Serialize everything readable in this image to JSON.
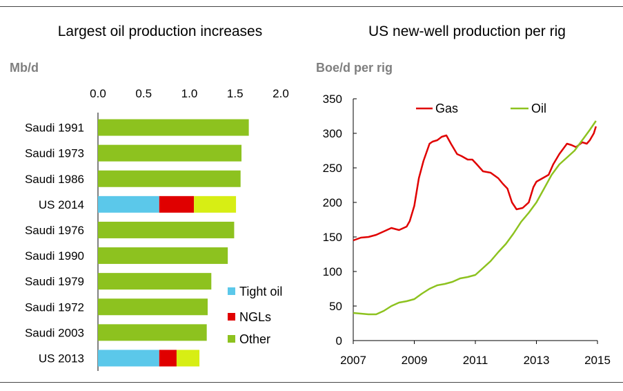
{
  "chart_data": [
    {
      "type": "bar",
      "orientation": "horizontal",
      "stacked": true,
      "title": "Largest oil production increases",
      "ylabel": "Mb/d",
      "xlim": [
        0,
        2.0
      ],
      "xticks": [
        "0.0",
        "0.5",
        "1.0",
        "1.5",
        "2.0"
      ],
      "xtick_values": [
        0,
        0.5,
        1.0,
        1.5,
        2.0
      ],
      "axis_position": "top",
      "grid": false,
      "legend_position": "bottom-right",
      "categories": [
        "Saudi 1991",
        "Saudi 1973",
        "Saudi 1986",
        "US 2014",
        "Saudi 1976",
        "Saudi 1990",
        "Saudi 1979",
        "Saudi 1972",
        "Saudi 2003",
        "US 2013"
      ],
      "series": [
        {
          "name": "Tight oil",
          "color": "#5bc8ea",
          "values": [
            0,
            0,
            0,
            0.67,
            0,
            0,
            0,
            0,
            0,
            0.67
          ]
        },
        {
          "name": "NGLs",
          "color": "#e00000",
          "values": [
            0,
            0,
            0,
            0.38,
            0,
            0,
            0,
            0,
            0,
            0.19
          ]
        },
        {
          "name": "Other",
          "color": "#8dc21f",
          "values": [
            1.65,
            1.57,
            1.56,
            0.46,
            1.49,
            1.42,
            1.24,
            1.2,
            1.19,
            0.25
          ]
        }
      ],
      "other_color_us": "#d7ee14"
    },
    {
      "type": "line",
      "title": "US new-well production per rig",
      "ylabel": "Boe/d per rig",
      "xlim": [
        2007,
        2015
      ],
      "ylim": [
        0,
        350
      ],
      "xticks": [
        "2007",
        "2009",
        "2011",
        "2013",
        "2015"
      ],
      "xtick_values": [
        2007,
        2009,
        2011,
        2013,
        2015
      ],
      "yticks": [
        "0",
        "50",
        "100",
        "150",
        "200",
        "250",
        "300",
        "350"
      ],
      "ytick_values": [
        0,
        50,
        100,
        150,
        200,
        250,
        300,
        350
      ],
      "grid": false,
      "legend_position": "top",
      "series": [
        {
          "name": "Gas",
          "color": "#e00000",
          "x": [
            2007.0,
            2007.25,
            2007.5,
            2007.75,
            2008.0,
            2008.25,
            2008.5,
            2008.75,
            2008.85,
            2009.0,
            2009.15,
            2009.3,
            2009.5,
            2009.6,
            2009.75,
            2009.9,
            2010.05,
            2010.2,
            2010.4,
            2010.55,
            2010.75,
            2010.9,
            2011.05,
            2011.25,
            2011.5,
            2011.75,
            2011.9,
            2012.05,
            2012.2,
            2012.35,
            2012.55,
            2012.75,
            2012.9,
            2013.0,
            2013.2,
            2013.4,
            2013.55,
            2013.75,
            2014.0,
            2014.15,
            2014.3,
            2014.5,
            2014.65,
            2014.75,
            2014.88,
            2014.95
          ],
          "y": [
            145,
            149,
            150,
            153,
            158,
            163,
            160,
            165,
            173,
            195,
            235,
            260,
            285,
            288,
            290,
            295,
            297,
            285,
            270,
            267,
            262,
            262,
            255,
            245,
            243,
            235,
            227,
            220,
            200,
            190,
            192,
            200,
            222,
            230,
            235,
            240,
            255,
            270,
            285,
            283,
            280,
            287,
            285,
            290,
            300,
            310
          ]
        },
        {
          "name": "Oil",
          "color": "#8dc21f",
          "x": [
            2007.0,
            2007.25,
            2007.5,
            2007.75,
            2008.0,
            2008.25,
            2008.5,
            2008.75,
            2009.0,
            2009.25,
            2009.5,
            2009.75,
            2010.0,
            2010.25,
            2010.5,
            2010.75,
            2011.0,
            2011.25,
            2011.5,
            2011.75,
            2012.0,
            2012.25,
            2012.5,
            2012.75,
            2013.0,
            2013.25,
            2013.5,
            2013.75,
            2014.0,
            2014.25,
            2014.5,
            2014.75,
            2014.95
          ],
          "y": [
            40,
            39,
            38,
            38,
            43,
            50,
            55,
            57,
            60,
            68,
            75,
            80,
            82,
            85,
            90,
            92,
            95,
            105,
            115,
            128,
            140,
            155,
            172,
            185,
            200,
            220,
            240,
            255,
            265,
            275,
            290,
            305,
            318
          ]
        }
      ]
    }
  ]
}
